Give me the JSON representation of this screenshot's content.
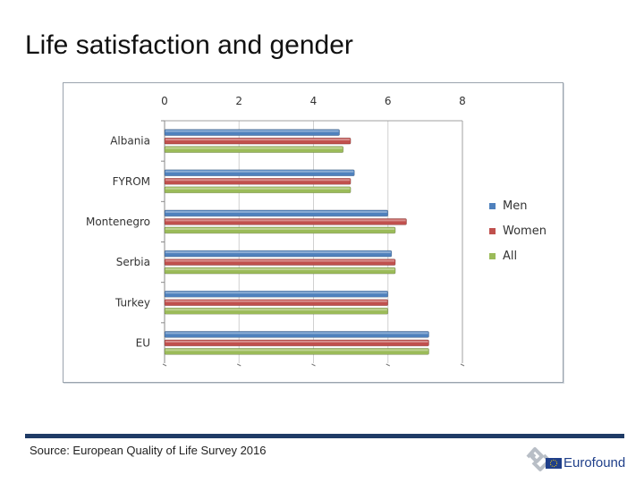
{
  "slide": {
    "title": "Life satisfaction and gender",
    "source": "Source: European Quality of Life Survey 2016",
    "logo_text": "Eurofound"
  },
  "chart_data": {
    "type": "bar",
    "orientation": "horizontal",
    "title": "",
    "xlabel": "",
    "ylabel": "",
    "xlim": [
      0,
      8
    ],
    "ticks": [
      0,
      2,
      4,
      6,
      8
    ],
    "grid": true,
    "legend_position": "right",
    "categories": [
      "Albania",
      "FYROM",
      "Montenegro",
      "Serbia",
      "Turkey",
      "EU"
    ],
    "series": [
      {
        "name": "Men",
        "color": "#4f81bd",
        "values": [
          4.7,
          5.1,
          6.0,
          6.1,
          6.0,
          7.1
        ]
      },
      {
        "name": "Women",
        "color": "#c0504d",
        "values": [
          5.0,
          5.0,
          6.5,
          6.2,
          6.0,
          7.1
        ]
      },
      {
        "name": "All",
        "color": "#9bbb59",
        "values": [
          4.8,
          5.0,
          6.2,
          6.2,
          6.0,
          7.1
        ]
      }
    ]
  }
}
